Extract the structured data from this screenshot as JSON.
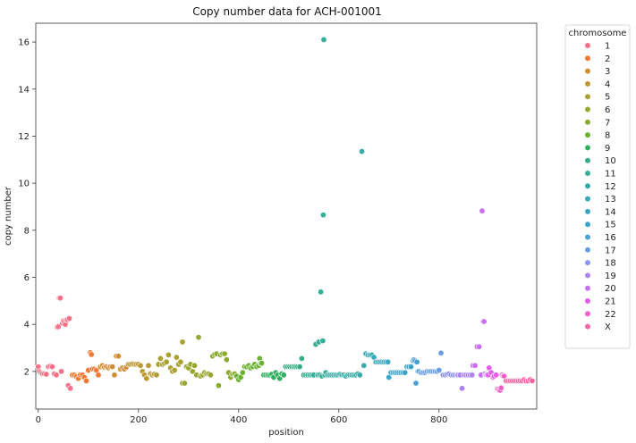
{
  "chart_data": {
    "type": "scatter",
    "title": "Copy number data for ACH-001001",
    "xlabel": "position",
    "ylabel": "copy number",
    "xlim": [
      -5,
      995
    ],
    "ylim": [
      0.4,
      16.8
    ],
    "xticks": [
      0,
      200,
      400,
      600,
      800
    ],
    "yticks": [
      2,
      4,
      6,
      8,
      10,
      12,
      14,
      16
    ],
    "grid": false,
    "legend": {
      "title": "chromosome",
      "placement": "outside-top-right"
    },
    "series": [
      {
        "name": "1",
        "color": "#f77189",
        "points": [
          [
            0,
            2.2
          ],
          [
            2,
            2.0
          ],
          [
            5,
            1.95
          ],
          [
            8,
            1.9
          ],
          [
            12,
            1.9
          ],
          [
            16,
            1.88
          ],
          [
            20,
            2.2
          ],
          [
            24,
            2.22
          ],
          [
            28,
            2.2
          ],
          [
            32,
            1.9
          ],
          [
            36,
            1.85
          ],
          [
            38,
            3.88
          ],
          [
            40,
            3.9
          ],
          [
            42,
            5.12
          ],
          [
            44,
            5.12
          ],
          [
            46,
            2.0
          ],
          [
            48,
            4.05
          ],
          [
            50,
            4.15
          ],
          [
            52,
            4.1
          ],
          [
            54,
            4.0
          ],
          [
            56,
            4.2
          ],
          [
            58,
            4.2
          ],
          [
            60,
            1.4
          ],
          [
            62,
            4.25
          ],
          [
            64,
            1.28
          ]
        ]
      },
      {
        "name": "2",
        "color": "#f37932",
        "points": [
          [
            68,
            1.85
          ],
          [
            72,
            1.85
          ],
          [
            76,
            1.78
          ],
          [
            80,
            1.7
          ],
          [
            84,
            1.85
          ],
          [
            88,
            1.85
          ],
          [
            92,
            1.75
          ],
          [
            96,
            1.6
          ],
          [
            100,
            2.05
          ],
          [
            104,
            2.8
          ],
          [
            106,
            2.72
          ],
          [
            108,
            2.1
          ],
          [
            112,
            2.1
          ],
          [
            116,
            2.05
          ],
          [
            120,
            1.85
          ]
        ]
      },
      {
        "name": "3",
        "color": "#d18d35",
        "points": [
          [
            124,
            2.2
          ],
          [
            128,
            2.25
          ],
          [
            132,
            2.18
          ],
          [
            136,
            2.2
          ],
          [
            140,
            2.15
          ],
          [
            144,
            2.2
          ],
          [
            148,
            2.2
          ],
          [
            152,
            1.85
          ],
          [
            156,
            2.65
          ],
          [
            160,
            2.65
          ],
          [
            164,
            2.1
          ],
          [
            168,
            2.15
          ],
          [
            172,
            2.1
          ],
          [
            176,
            2.18
          ]
        ]
      },
      {
        "name": "4",
        "color": "#bb9832",
        "points": [
          [
            180,
            2.3
          ],
          [
            184,
            2.3
          ],
          [
            188,
            2.32
          ],
          [
            192,
            2.3
          ],
          [
            196,
            2.3
          ],
          [
            200,
            2.3
          ],
          [
            204,
            2.25
          ],
          [
            208,
            2.0
          ],
          [
            212,
            1.85
          ],
          [
            216,
            1.7
          ],
          [
            220,
            2.25
          ],
          [
            224,
            1.9
          ],
          [
            228,
            1.85
          ],
          [
            232,
            1.88
          ]
        ]
      },
      {
        "name": "5",
        "color": "#a9a131",
        "points": [
          [
            236,
            1.85
          ],
          [
            240,
            2.3
          ],
          [
            244,
            2.55
          ],
          [
            248,
            2.3
          ],
          [
            252,
            2.35
          ],
          [
            256,
            2.4
          ],
          [
            260,
            2.7
          ],
          [
            264,
            2.15
          ],
          [
            268,
            2.0
          ],
          [
            272,
            2.05
          ],
          [
            276,
            2.6
          ],
          [
            280,
            2.3
          ],
          [
            284,
            2.4
          ],
          [
            288,
            3.25
          ]
        ]
      },
      {
        "name": "6",
        "color": "#99a731",
        "points": [
          [
            288,
            1.5
          ],
          [
            292,
            1.5
          ],
          [
            296,
            2.2
          ],
          [
            300,
            2.15
          ],
          [
            304,
            2.3
          ],
          [
            308,
            2.0
          ],
          [
            312,
            2.25
          ],
          [
            316,
            1.85
          ],
          [
            320,
            3.45
          ],
          [
            324,
            1.8
          ],
          [
            328,
            1.85
          ],
          [
            332,
            1.95
          ],
          [
            336,
            1.9
          ],
          [
            340,
            1.9
          ],
          [
            344,
            1.85
          ]
        ]
      },
      {
        "name": "7",
        "color": "#8cab31",
        "points": [
          [
            348,
            2.65
          ],
          [
            352,
            2.72
          ],
          [
            356,
            2.75
          ],
          [
            360,
            1.4
          ],
          [
            364,
            2.7
          ],
          [
            368,
            2.75
          ],
          [
            372,
            2.75
          ],
          [
            376,
            2.5
          ],
          [
            380,
            1.95
          ],
          [
            384,
            1.75
          ],
          [
            388,
            1.88
          ],
          [
            392,
            1.9
          ]
        ]
      },
      {
        "name": "8",
        "color": "#6bb131",
        "points": [
          [
            396,
            1.8
          ],
          [
            400,
            1.65
          ],
          [
            404,
            1.75
          ],
          [
            408,
            1.95
          ],
          [
            412,
            2.2
          ],
          [
            416,
            2.2
          ],
          [
            420,
            2.25
          ],
          [
            424,
            2.15
          ],
          [
            428,
            2.2
          ],
          [
            432,
            2.3
          ],
          [
            436,
            2.2
          ],
          [
            440,
            2.25
          ],
          [
            442,
            2.55
          ],
          [
            444,
            2.35
          ],
          [
            446,
            2.35
          ]
        ]
      },
      {
        "name": "9",
        "color": "#33b05f",
        "points": [
          [
            450,
            1.85
          ],
          [
            454,
            1.85
          ],
          [
            458,
            1.85
          ],
          [
            462,
            1.85
          ],
          [
            466,
            1.88
          ],
          [
            470,
            1.75
          ],
          [
            474,
            1.95
          ],
          [
            478,
            1.85
          ],
          [
            482,
            1.7
          ],
          [
            486,
            1.9
          ],
          [
            490,
            1.85
          ]
        ]
      },
      {
        "name": "10",
        "color": "#35ae85",
        "points": [
          [
            494,
            2.2
          ],
          [
            498,
            2.2
          ],
          [
            502,
            2.2
          ],
          [
            506,
            2.2
          ],
          [
            510,
            2.2
          ],
          [
            514,
            2.2
          ],
          [
            518,
            2.2
          ],
          [
            522,
            2.2
          ],
          [
            526,
            2.55
          ],
          [
            530,
            1.85
          ],
          [
            534,
            1.85
          ]
        ]
      },
      {
        "name": "11",
        "color": "#36ad97",
        "points": [
          [
            538,
            1.85
          ],
          [
            542,
            1.85
          ],
          [
            546,
            1.85
          ],
          [
            550,
            1.85
          ],
          [
            554,
            3.15
          ],
          [
            558,
            1.85
          ],
          [
            560,
            3.25
          ],
          [
            562,
            1.85
          ],
          [
            564,
            5.38
          ],
          [
            566,
            1.8
          ],
          [
            568,
            3.3
          ],
          [
            569,
            8.65
          ],
          [
            570,
            16.1
          ],
          [
            572,
            1.85
          ],
          [
            574,
            1.95
          ]
        ]
      },
      {
        "name": "12",
        "color": "#37aba5",
        "points": [
          [
            578,
            1.85
          ],
          [
            582,
            1.85
          ],
          [
            586,
            1.85
          ],
          [
            590,
            1.85
          ],
          [
            594,
            1.85
          ],
          [
            598,
            1.85
          ],
          [
            602,
            1.88
          ],
          [
            606,
            1.85
          ],
          [
            610,
            1.85
          ],
          [
            614,
            1.8
          ],
          [
            618,
            1.85
          ],
          [
            622,
            1.85
          ],
          [
            626,
            1.85
          ],
          [
            630,
            1.85
          ],
          [
            634,
            1.85
          ],
          [
            638,
            1.9
          ],
          [
            642,
            1.85
          ],
          [
            646,
            11.35
          ]
        ]
      },
      {
        "name": "13",
        "color": "#38aab1",
        "points": [
          [
            650,
            2.25
          ],
          [
            654,
            2.75
          ],
          [
            658,
            2.7
          ],
          [
            662,
            2.7
          ],
          [
            666,
            2.7
          ]
        ]
      },
      {
        "name": "14",
        "color": "#3aa8bd",
        "points": [
          [
            670,
            2.6
          ],
          [
            674,
            2.4
          ],
          [
            678,
            2.4
          ],
          [
            682,
            2.4
          ],
          [
            686,
            2.4
          ],
          [
            690,
            2.4
          ],
          [
            694,
            2.4
          ],
          [
            698,
            2.4
          ]
        ]
      },
      {
        "name": "15",
        "color": "#3ba5c9",
        "points": [
          [
            700,
            1.75
          ],
          [
            704,
            1.95
          ],
          [
            708,
            1.95
          ],
          [
            712,
            1.95
          ],
          [
            716,
            1.95
          ],
          [
            720,
            1.95
          ],
          [
            724,
            1.95
          ],
          [
            728,
            1.95
          ],
          [
            732,
            1.95
          ],
          [
            736,
            2.2
          ],
          [
            740,
            2.2
          ],
          [
            744,
            2.2
          ]
        ]
      },
      {
        "name": "16",
        "color": "#4aa0d5",
        "points": [
          [
            748,
            2.45
          ],
          [
            750,
            2.5
          ],
          [
            752,
            2.45
          ],
          [
            754,
            1.5
          ],
          [
            756,
            2.4
          ],
          [
            758,
            2.0
          ],
          [
            760,
            2.0
          ]
        ]
      },
      {
        "name": "17",
        "color": "#6a9ee5",
        "points": [
          [
            764,
            1.95
          ],
          [
            768,
            1.95
          ],
          [
            772,
            1.95
          ],
          [
            776,
            2.0
          ],
          [
            780,
            2.0
          ],
          [
            784,
            2.0
          ],
          [
            788,
            2.0
          ],
          [
            792,
            2.0
          ],
          [
            796,
            2.0
          ],
          [
            800,
            2.05
          ],
          [
            804,
            2.78
          ]
        ]
      },
      {
        "name": "18",
        "color": "#8c93f0",
        "points": [
          [
            808,
            1.85
          ],
          [
            812,
            1.85
          ],
          [
            816,
            1.88
          ],
          [
            820,
            1.9
          ],
          [
            824,
            1.85
          ],
          [
            828,
            1.85
          ],
          [
            832,
            1.85
          ],
          [
            836,
            1.85
          ]
        ]
      },
      {
        "name": "19",
        "color": "#ab83f4",
        "points": [
          [
            838,
            1.85
          ],
          [
            842,
            1.85
          ],
          [
            846,
            1.28
          ],
          [
            850,
            1.85
          ],
          [
            854,
            1.85
          ],
          [
            858,
            1.85
          ],
          [
            862,
            1.85
          ],
          [
            866,
            1.85
          ]
        ]
      },
      {
        "name": "20",
        "color": "#c96ff3",
        "points": [
          [
            868,
            2.25
          ],
          [
            872,
            2.25
          ],
          [
            876,
            3.05
          ],
          [
            880,
            3.05
          ],
          [
            884,
            1.85
          ],
          [
            886,
            8.82
          ],
          [
            888,
            4.12
          ],
          [
            890,
            4.12
          ],
          [
            892,
            1.9
          ],
          [
            894,
            1.85
          ],
          [
            896,
            1.85
          ]
        ]
      },
      {
        "name": "21",
        "color": "#e35ee8",
        "points": [
          [
            898,
            1.85
          ],
          [
            900,
            2.15
          ],
          [
            904,
            1.95
          ],
          [
            908,
            1.75
          ],
          [
            910,
            1.8
          ],
          [
            914,
            1.85
          ]
        ]
      },
      {
        "name": "22",
        "color": "#f25ec7",
        "points": [
          [
            916,
            1.25
          ],
          [
            918,
            1.25
          ],
          [
            920,
            1.2
          ],
          [
            922,
            1.2
          ],
          [
            924,
            1.3
          ],
          [
            926,
            1.85
          ],
          [
            928,
            1.8
          ],
          [
            930,
            1.8
          ]
        ]
      },
      {
        "name": "X",
        "color": "#f565a2",
        "points": [
          [
            934,
            1.6
          ],
          [
            938,
            1.6
          ],
          [
            942,
            1.6
          ],
          [
            946,
            1.6
          ],
          [
            950,
            1.6
          ],
          [
            954,
            1.6
          ],
          [
            958,
            1.6
          ],
          [
            962,
            1.6
          ],
          [
            966,
            1.6
          ],
          [
            970,
            1.65
          ],
          [
            974,
            1.6
          ],
          [
            978,
            1.6
          ],
          [
            982,
            1.65
          ],
          [
            986,
            1.6
          ]
        ]
      }
    ]
  }
}
